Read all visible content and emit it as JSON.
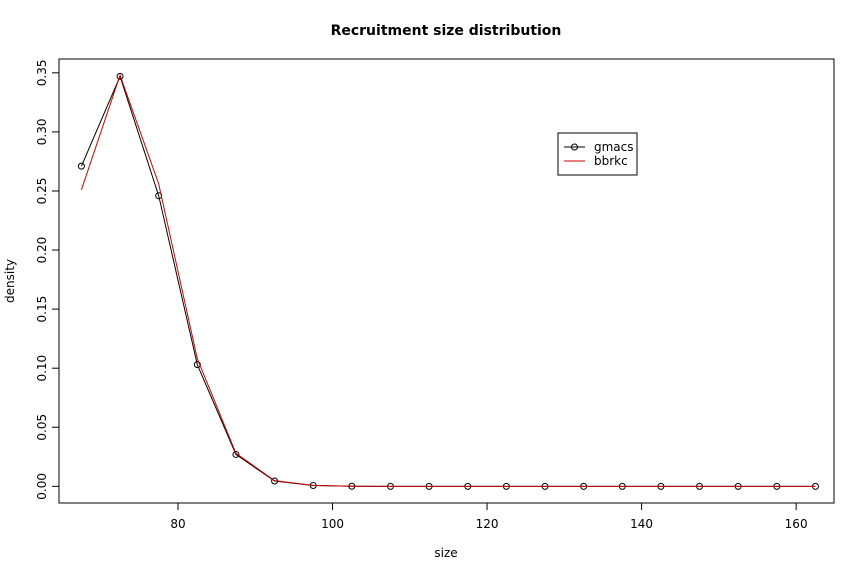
{
  "chart_data": {
    "type": "line",
    "title": "Recruitment size distribution",
    "xlabel": "size",
    "ylabel": "density",
    "xlim": [
      64.6,
      164.9
    ],
    "ylim": [
      -0.0141,
      0.3617
    ],
    "xticks": [
      80,
      100,
      120,
      140,
      160
    ],
    "yticks": [
      0.0,
      0.05,
      0.1,
      0.15,
      0.2,
      0.25,
      0.3,
      0.35
    ],
    "ytick_labels": [
      "0.00",
      "0.05",
      "0.10",
      "0.15",
      "0.20",
      "0.25",
      "0.30",
      "0.35"
    ],
    "grid": false,
    "legend_position": "top-right",
    "x": [
      67.5,
      72.5,
      77.5,
      82.5,
      87.5,
      92.5,
      97.5,
      102.5,
      107.5,
      112.5,
      117.5,
      122.5,
      127.5,
      132.5,
      137.5,
      142.5,
      147.5,
      152.5,
      157.5,
      162.5
    ],
    "series": [
      {
        "name": "gmacs",
        "color": "#000000",
        "style": "line+points",
        "values": [
          0.271,
          0.347,
          0.246,
          0.103,
          0.027,
          0.0045,
          0.0007,
          0.0001,
          0,
          0,
          0,
          0,
          0,
          0,
          0,
          0,
          0,
          0,
          0,
          0
        ]
      },
      {
        "name": "bbrkc",
        "color": "#cc0000",
        "style": "line",
        "values": [
          0.251,
          0.348,
          0.256,
          0.108,
          0.028,
          0.0048,
          0.0008,
          0.0001,
          0,
          0,
          0,
          0,
          0,
          0,
          0,
          0,
          0,
          0,
          0,
          0
        ]
      }
    ]
  }
}
